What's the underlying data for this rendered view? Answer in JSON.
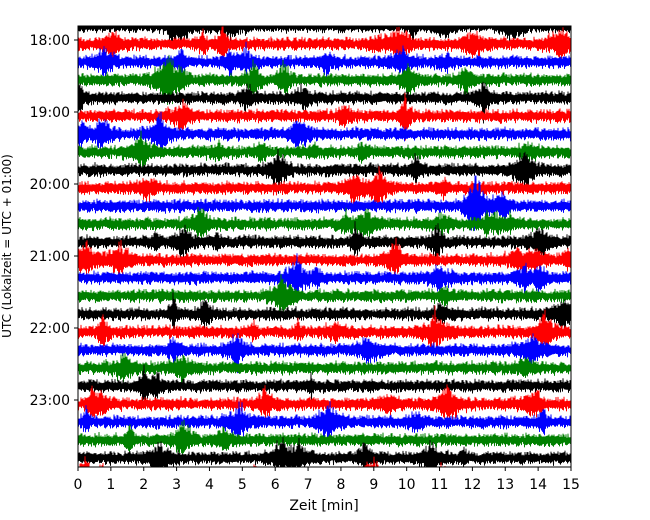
{
  "chart_data": {
    "type": "line",
    "title": "",
    "xlabel": "Zeit  [min]",
    "ylabel": "UTC (Lokalzeit = UTC + 01:00)",
    "xlim": [
      0,
      15
    ],
    "x_ticks": [
      "0",
      "1",
      "2",
      "3",
      "4",
      "5",
      "6",
      "7",
      "8",
      "9",
      "10",
      "11",
      "12",
      "13",
      "14",
      "15"
    ],
    "y_ticks": [
      "18:00",
      "19:00",
      "20:00",
      "21:00",
      "22:00",
      "23:00"
    ],
    "row_interval_min": 15,
    "rows_per_hour": 4,
    "time_start": "17:45",
    "time_end": "23:45",
    "row_colors": [
      "#000000",
      "#ff0000",
      "#0000ff",
      "#008000"
    ],
    "grid": false,
    "legend": "none"
  }
}
